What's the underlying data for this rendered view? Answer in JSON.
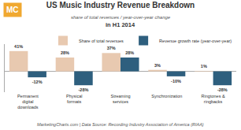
{
  "chart_data": {
    "type": "bar",
    "title": "US Music Industry Revenue Breakdown",
    "subtitle": [
      "share of total revenues / year-over-year change",
      "in H1 2014"
    ],
    "annotations": [
      "MarketingCharts.com | Data Source: Recording Industry Association of America (RIAA)",
      "MC"
    ],
    "categories": [
      "Permanent digital\ndownloads",
      "Physical formats",
      "Streaming services",
      "Synchronization",
      "Ringtones & ringbacks"
    ],
    "series": [
      {
        "name": "Share of total revenues",
        "color": "#e8c9b0",
        "values": [
          41,
          28,
          37,
          3,
          1
        ],
        "value_labels": [
          "41%",
          "28%",
          "37%",
          "3%",
          "1%"
        ]
      },
      {
        "name": "Revenue growth rate (year-over-year)",
        "color": "#2e5f7e",
        "values": [
          -12,
          -28,
          28,
          -10,
          -28
        ],
        "value_labels": [
          "-12%",
          "-28%",
          "28%",
          "-10%",
          "-28%"
        ]
      }
    ],
    "ylim": [
      -42,
      55
    ],
    "data_labels": true,
    "tick_labels": "x",
    "grid": false,
    "legend": "upper right"
  }
}
